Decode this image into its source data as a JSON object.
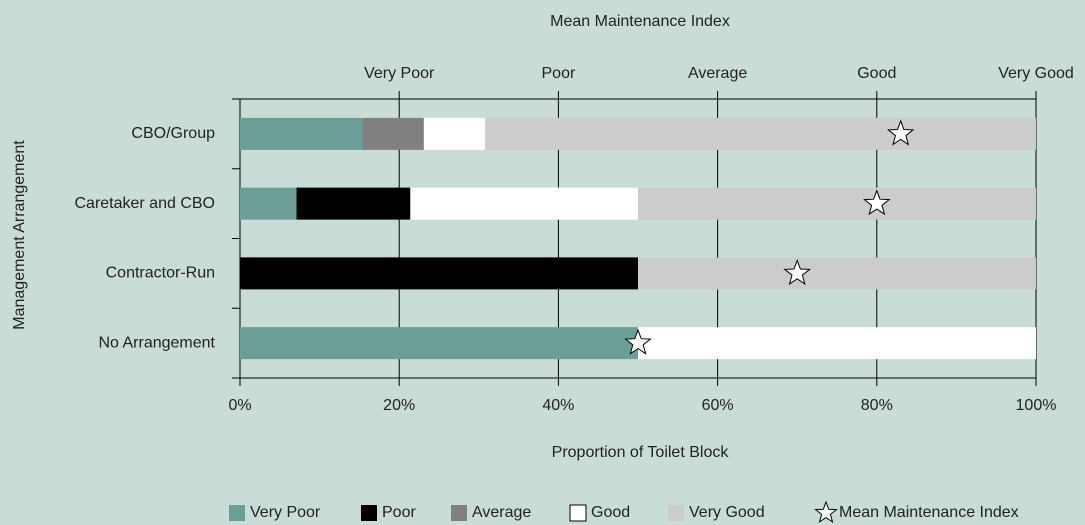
{
  "chart_data": {
    "type": "stacked-barh",
    "x2label": "Mean Maintenance Index",
    "xlabel": "Proportion of Toilet Block",
    "ylabel": "Management  Arrangement",
    "categories": [
      "CBO/Group",
      "Caretaker and CBO",
      "Contractor-Run",
      "No Arrangement"
    ],
    "series": [
      {
        "name": "Very Poor",
        "color": "#6a9e96",
        "values": [
          15.4,
          7.1,
          0,
          50
        ]
      },
      {
        "name": "Poor",
        "color": "#000000",
        "values": [
          0,
          14.3,
          50,
          0
        ]
      },
      {
        "name": "Average",
        "color": "#808080",
        "values": [
          7.7,
          0,
          0,
          0
        ]
      },
      {
        "name": "Good",
        "color": "#ffffff",
        "values": [
          7.7,
          28.6,
          0,
          50
        ]
      },
      {
        "name": "Very Good",
        "color": "#cccccc",
        "values": [
          69.2,
          50,
          50,
          0
        ]
      },
      {
        "name": "Mean Maintenance Index",
        "color": "#ffffff",
        "marker": "star",
        "axis": "x2",
        "values": [
          4.15,
          4.0,
          3.5,
          2.5
        ]
      }
    ],
    "xlim": [
      0,
      100
    ],
    "xticks": [
      {
        "value": 0,
        "label": "0%"
      },
      {
        "value": 20,
        "label": "20%"
      },
      {
        "value": 40,
        "label": "40%"
      },
      {
        "value": 60,
        "label": "60%"
      },
      {
        "value": 80,
        "label": "80%"
      },
      {
        "value": 100,
        "label": "100%"
      }
    ],
    "x2lim": [
      0,
      5
    ],
    "x2ticks": [
      {
        "value": 1,
        "label": "Very Poor"
      },
      {
        "value": 2,
        "label": "Poor"
      },
      {
        "value": 3,
        "label": "Average"
      },
      {
        "value": 4,
        "label": "Good"
      },
      {
        "value": 5,
        "label": "Very Good"
      }
    ],
    "grid": true,
    "legend": "bottom"
  }
}
